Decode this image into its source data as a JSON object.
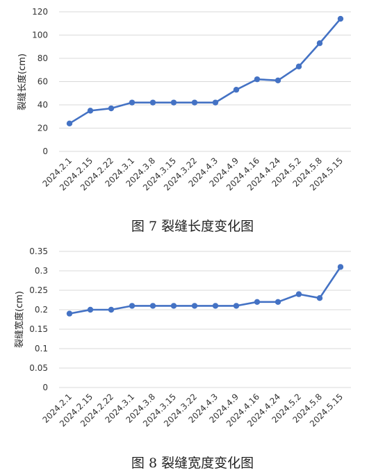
{
  "chart_data": [
    {
      "type": "line",
      "title": "",
      "xlabel": "",
      "ylabel": "裂缝长度(cm)",
      "ylim": [
        0,
        120
      ],
      "yticks": [
        0,
        20,
        40,
        60,
        80,
        100,
        120
      ],
      "categories": [
        "2024.2.1",
        "2024.2.15",
        "2024.2.22",
        "2024.3.1",
        "2024.3.8",
        "2024.3.15",
        "2024.3.22",
        "2024.4.3",
        "2024.4.9",
        "2024.4.16",
        "2024.4.24",
        "2024.5.2",
        "2024.5.8",
        "2024.5.15"
      ],
      "series": [
        {
          "values": [
            24,
            35,
            37,
            42,
            42,
            42,
            42,
            42,
            53,
            62,
            61,
            73,
            93,
            114
          ]
        }
      ],
      "grid": true,
      "color": "#4472C4",
      "caption": "图 7  裂缝长度变化图"
    },
    {
      "type": "line",
      "title": "",
      "xlabel": "",
      "ylabel": "裂缝宽度(cm)",
      "ylim": [
        0,
        0.35
      ],
      "yticks": [
        "0",
        "0.05",
        "0.1",
        "0.15",
        "0.2",
        "0.25",
        "0.3",
        "0.35"
      ],
      "categories": [
        "2024.2.1",
        "2024.2.15",
        "2024.2.22",
        "2024.3.1",
        "2024.3.8",
        "2024.3.15",
        "2024.3.22",
        "2024.4.3",
        "2024.4.9",
        "2024.4.16",
        "2024.4.24",
        "2024.5.2",
        "2024.5.8",
        "2024.5.15"
      ],
      "series": [
        {
          "values": [
            0.19,
            0.2,
            0.2,
            0.21,
            0.21,
            0.21,
            0.21,
            0.21,
            0.21,
            0.22,
            0.22,
            0.24,
            0.23,
            0.31
          ]
        }
      ],
      "grid": true,
      "color": "#4472C4",
      "caption": "图 8  裂缝宽度变化图"
    }
  ]
}
